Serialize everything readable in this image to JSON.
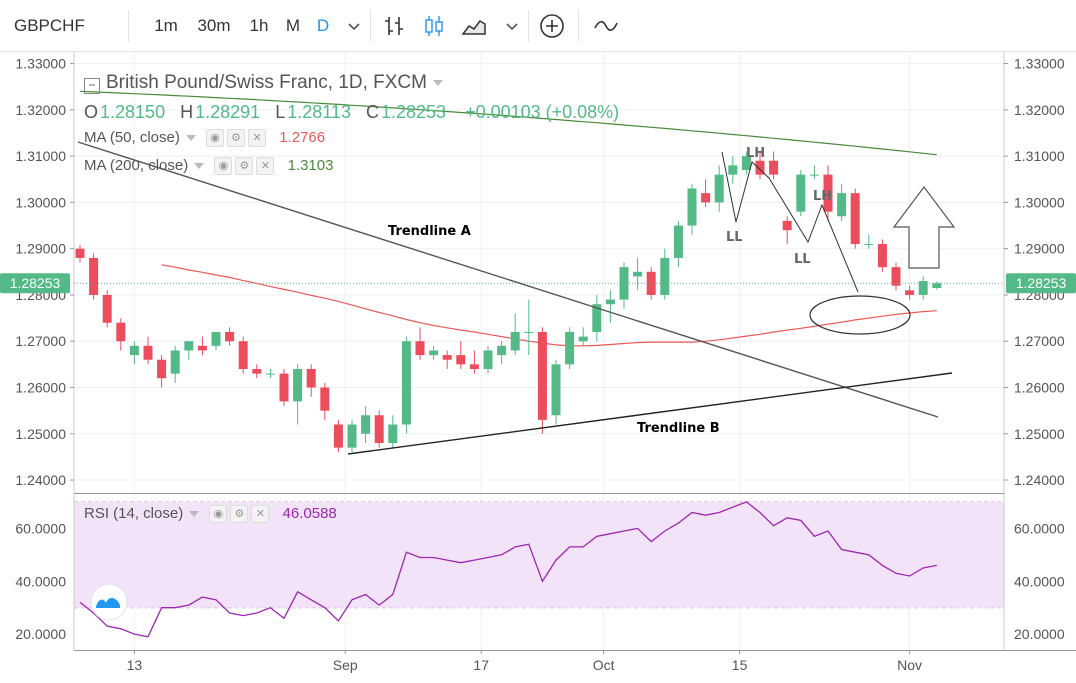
{
  "toolbar": {
    "symbol": "GBPCHF",
    "intervals": [
      "1m",
      "30m",
      "1h",
      "M",
      "D"
    ],
    "active_interval": "D",
    "icons": [
      "chevron-down-icon",
      "bar-chart-icon",
      "candlestick-icon",
      "area-chart-icon",
      "chevron-down-icon",
      "add-compare-icon",
      "indicators-icon"
    ]
  },
  "legend": {
    "title": "British Pound/Swiss Franc, 1D, FXCM",
    "ohlc": [
      {
        "key": "O",
        "value": "1.28150"
      },
      {
        "key": "H",
        "value": "1.28291"
      },
      {
        "key": "L",
        "value": "1.28113"
      },
      {
        "key": "C",
        "value": "1.28253"
      }
    ],
    "change": "+0.00103 (+0.08%)",
    "ma50_label": "MA (50, close)",
    "ma50_value": "1.2766",
    "ma200_label": "MA (200, close)",
    "ma200_value": "1.3103",
    "rsi_label": "RSI (14, close)",
    "rsi_value": "46.0588"
  },
  "colors": {
    "up": "#53b987",
    "down": "#eb4d5c",
    "ma50": "#e85a5a",
    "ma200": "#4a8a3a",
    "rsi": "#9c27b0",
    "rsi_band": "#f3e3f8",
    "price_tag": "#53b987"
  },
  "chart_data": [
    {
      "type": "candlestick",
      "title": "British Pound/Swiss Franc, 1D, FXCM",
      "x_ticks": [
        "13",
        "Sep",
        "17",
        "Oct",
        "15",
        "Nov"
      ],
      "ylim": [
        1.2372,
        1.3325
      ],
      "y_ticks": [
        "1.24000",
        "1.25000",
        "1.26000",
        "1.27000",
        "1.28000",
        "1.29000",
        "1.30000",
        "1.31000",
        "1.32000",
        "1.33000"
      ],
      "last_price": "1.28253",
      "candles": [
        [
          1.29,
          1.2908,
          1.287,
          1.288
        ],
        [
          1.288,
          1.289,
          1.279,
          1.28
        ],
        [
          1.28,
          1.281,
          1.273,
          1.274
        ],
        [
          1.274,
          1.275,
          1.268,
          1.27
        ],
        [
          1.267,
          1.27,
          1.265,
          1.269
        ],
        [
          1.269,
          1.271,
          1.265,
          1.266
        ],
        [
          1.266,
          1.267,
          1.26,
          1.262
        ],
        [
          1.263,
          1.269,
          1.261,
          1.268
        ],
        [
          1.268,
          1.27,
          1.266,
          1.27
        ],
        [
          1.269,
          1.271,
          1.267,
          1.268
        ],
        [
          1.269,
          1.272,
          1.268,
          1.272
        ],
        [
          1.272,
          1.273,
          1.269,
          1.27
        ],
        [
          1.27,
          1.271,
          1.263,
          1.264
        ],
        [
          1.264,
          1.265,
          1.262,
          1.263
        ],
        [
          1.263,
          1.264,
          1.262,
          1.263
        ],
        [
          1.263,
          1.264,
          1.256,
          1.257
        ],
        [
          1.257,
          1.265,
          1.252,
          1.264
        ],
        [
          1.264,
          1.265,
          1.258,
          1.26
        ],
        [
          1.26,
          1.261,
          1.253,
          1.255
        ],
        [
          1.252,
          1.253,
          1.246,
          1.247
        ],
        [
          1.247,
          1.253,
          1.246,
          1.252
        ],
        [
          1.25,
          1.256,
          1.248,
          1.254
        ],
        [
          1.254,
          1.255,
          1.247,
          1.248
        ],
        [
          1.248,
          1.254,
          1.247,
          1.252
        ],
        [
          1.252,
          1.271,
          1.25,
          1.27
        ],
        [
          1.27,
          1.273,
          1.266,
          1.267
        ],
        [
          1.267,
          1.269,
          1.266,
          1.268
        ],
        [
          1.267,
          1.268,
          1.264,
          1.266
        ],
        [
          1.267,
          1.27,
          1.264,
          1.265
        ],
        [
          1.265,
          1.268,
          1.263,
          1.264
        ],
        [
          1.264,
          1.269,
          1.263,
          1.268
        ],
        [
          1.267,
          1.27,
          1.265,
          1.269
        ],
        [
          1.268,
          1.276,
          1.267,
          1.272
        ],
        [
          1.272,
          1.279,
          1.267,
          1.272
        ],
        [
          1.272,
          1.273,
          1.25,
          1.253
        ],
        [
          1.254,
          1.266,
          1.252,
          1.265
        ],
        [
          1.265,
          1.273,
          1.264,
          1.272
        ],
        [
          1.27,
          1.273,
          1.269,
          1.271
        ],
        [
          1.272,
          1.28,
          1.27,
          1.278
        ],
        [
          1.278,
          1.281,
          1.274,
          1.279
        ],
        [
          1.279,
          1.287,
          1.277,
          1.286
        ],
        [
          1.284,
          1.288,
          1.281,
          1.285
        ],
        [
          1.285,
          1.286,
          1.279,
          1.28
        ],
        [
          1.28,
          1.29,
          1.279,
          1.288
        ],
        [
          1.288,
          1.296,
          1.286,
          1.295
        ],
        [
          1.295,
          1.304,
          1.293,
          1.303
        ],
        [
          1.302,
          1.305,
          1.299,
          1.3
        ],
        [
          1.3,
          1.308,
          1.298,
          1.306
        ],
        [
          1.306,
          1.31,
          1.304,
          1.308
        ],
        [
          1.307,
          1.311,
          1.306,
          1.31
        ],
        [
          1.309,
          1.311,
          1.305,
          1.306
        ],
        [
          1.309,
          1.311,
          1.305,
          1.306
        ],
        [
          1.296,
          1.297,
          1.291,
          1.294
        ],
        [
          1.298,
          1.307,
          1.297,
          1.306
        ],
        [
          1.306,
          1.308,
          1.305,
          1.306
        ],
        [
          1.306,
          1.308,
          1.296,
          1.298
        ],
        [
          1.297,
          1.304,
          1.296,
          1.302
        ],
        [
          1.302,
          1.303,
          1.29,
          1.291
        ],
        [
          1.291,
          1.293,
          1.29,
          1.291
        ],
        [
          1.291,
          1.292,
          1.285,
          1.286
        ],
        [
          1.286,
          1.287,
          1.281,
          1.282
        ],
        [
          1.281,
          1.282,
          1.279,
          1.28
        ],
        [
          1.28,
          1.284,
          1.279,
          1.283
        ],
        [
          1.2815,
          1.28291,
          1.28113,
          1.28253
        ]
      ],
      "ma50": [
        1.2865,
        1.286,
        1.2854,
        1.2849,
        1.2843,
        1.2838,
        1.2831,
        1.2825,
        1.2818,
        1.2812,
        1.2806,
        1.2799,
        1.2793,
        1.2786,
        1.2778,
        1.277,
        1.2762,
        1.2755,
        1.2747,
        1.274,
        1.2734,
        1.2729,
        1.2724,
        1.272,
        1.2715,
        1.271,
        1.2705,
        1.27,
        1.2696,
        1.2692,
        1.269,
        1.269,
        1.2691,
        1.2693,
        1.2695,
        1.2697,
        1.2698,
        1.2698,
        1.2698,
        1.2698,
        1.27,
        1.2703,
        1.2707,
        1.2711,
        1.2715,
        1.272,
        1.2724,
        1.2728,
        1.2732,
        1.2737,
        1.2741,
        1.2746,
        1.275,
        1.2754,
        1.2758,
        1.2761,
        1.2764,
        1.2766
      ],
      "ma50_start_index": 6,
      "ma200": [
        1.324,
        1.3103
      ],
      "rsi": {
        "ylim": [
          14,
          73
        ],
        "band": [
          30,
          70
        ],
        "y_ticks": [
          "20.0000",
          "40.0000",
          "60.0000"
        ],
        "values": [
          32,
          28,
          23,
          22,
          20,
          19,
          30,
          30,
          31,
          34,
          33,
          28,
          27,
          28,
          30,
          26,
          36,
          33,
          30,
          25,
          33,
          35,
          31,
          35,
          51,
          49,
          49,
          48,
          47,
          48,
          49,
          50,
          53,
          54,
          40,
          48,
          53,
          53,
          57,
          58,
          59,
          60,
          55,
          59,
          62,
          66,
          65,
          66,
          68,
          70,
          66,
          61,
          64,
          63,
          57,
          59,
          52,
          51,
          50,
          46,
          43,
          42,
          45,
          46
        ]
      }
    }
  ],
  "annotations": {
    "trendline_a": "Trendline  A",
    "trendline_b": "Trendline B",
    "lh_1": "LH",
    "lh_2": "LH",
    "ll_1": "LL",
    "ll_2": "LL"
  }
}
